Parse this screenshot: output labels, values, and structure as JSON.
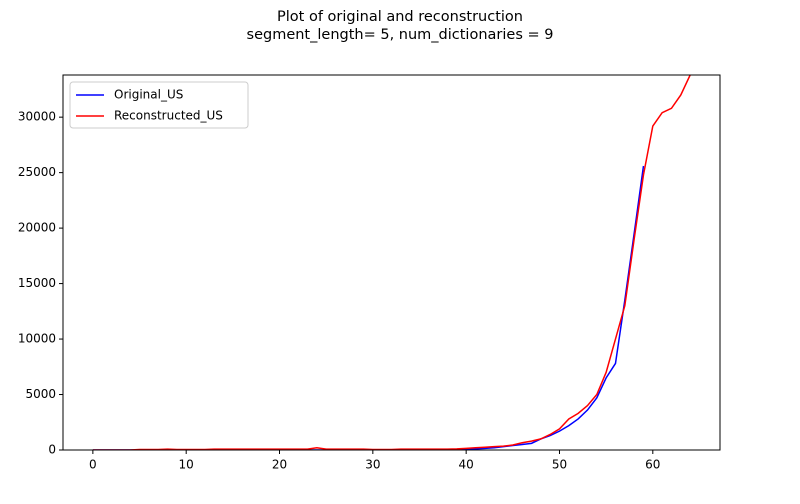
{
  "chart_data": {
    "type": "line",
    "title": "Plot of original and reconstruction",
    "subtitle": "segment_length= 5, num_dictionaries = 9",
    "x": [
      0,
      1,
      2,
      3,
      4,
      5,
      6,
      7,
      8,
      9,
      10,
      11,
      12,
      13,
      14,
      15,
      16,
      17,
      18,
      19,
      20,
      21,
      22,
      23,
      24,
      25,
      26,
      27,
      28,
      29,
      30,
      31,
      32,
      33,
      34,
      35,
      36,
      37,
      38,
      39,
      40,
      41,
      42,
      43,
      44,
      45,
      46,
      47,
      48,
      49,
      50,
      51,
      52,
      53,
      54,
      55,
      56,
      57,
      58,
      59,
      60,
      61,
      62,
      63,
      64
    ],
    "series": [
      {
        "name": "Original_US",
        "color": "#0000ff",
        "values": [
          0,
          0,
          0,
          0,
          0,
          0,
          0,
          0,
          0,
          0,
          0,
          0,
          0,
          0,
          0,
          0,
          0,
          0,
          0,
          0,
          0,
          0,
          0,
          0,
          0,
          0,
          0,
          0,
          0,
          0,
          0,
          0,
          0,
          0,
          0,
          0,
          0,
          0,
          0,
          0,
          30,
          100,
          150,
          200,
          300,
          400,
          500,
          600,
          1000,
          1300,
          1700,
          2200,
          2800,
          3600,
          4700,
          6500,
          7800,
          13500,
          19500,
          25600,
          null,
          null,
          null,
          null,
          null
        ]
      },
      {
        "name": "Reconstructed_US",
        "color": "#ff0000",
        "values": [
          0,
          0,
          0,
          0,
          0,
          50,
          50,
          50,
          80,
          50,
          50,
          50,
          50,
          80,
          80,
          80,
          80,
          80,
          80,
          80,
          80,
          80,
          80,
          80,
          200,
          80,
          80,
          80,
          80,
          80,
          50,
          50,
          50,
          80,
          80,
          80,
          80,
          80,
          80,
          100,
          150,
          200,
          250,
          300,
          350,
          450,
          650,
          800,
          1000,
          1400,
          1900,
          2800,
          3300,
          4000,
          5000,
          7000,
          10000,
          13000,
          19000,
          24800,
          29200,
          30400,
          30800,
          32000,
          33800
        ]
      }
    ],
    "xlim": [
      -3.2,
      67.2
    ],
    "xticks": [
      0,
      10,
      20,
      30,
      40,
      50,
      60
    ],
    "ylim": [
      0,
      33800
    ],
    "yticks": [
      0,
      5000,
      10000,
      15000,
      20000,
      25000,
      30000
    ],
    "legend": "upper left"
  }
}
